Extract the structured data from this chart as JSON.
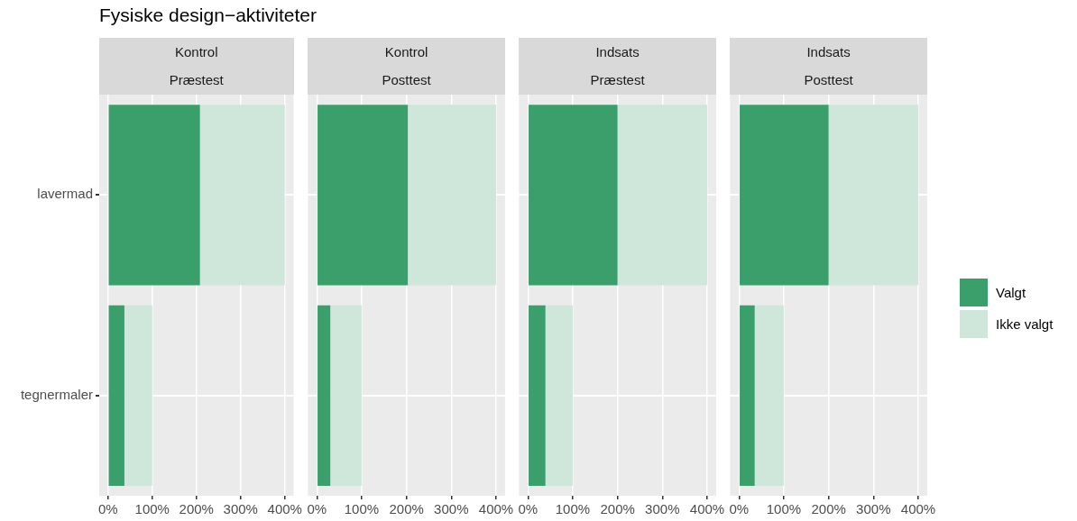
{
  "chart_data": [
    {
      "type": "bar",
      "title": "Fysiske design−aktiviteter",
      "annotations": [
        "Kontrol",
        "Præstest"
      ],
      "orientation": "horizontal",
      "stacked": true,
      "categories": [
        "lavermad",
        "tegnermaler"
      ],
      "series": [
        {
          "color": "#3b9f6c",
          "values": [
            208,
            37
          ]
        },
        {
          "color": "#cfe7da",
          "values": [
            192,
            63
          ]
        }
      ],
      "xlim": [
        -20,
        420
      ],
      "xticks": [
        {
          "value": 0,
          "label": "0%"
        },
        {
          "value": 100,
          "label": "100%"
        },
        {
          "value": 200,
          "label": "200%"
        },
        {
          "value": 300,
          "label": "300%"
        },
        {
          "value": 400,
          "label": "400%"
        }
      ],
      "grid": true,
      "legend": false
    },
    {
      "type": "bar",
      "annotations": [
        "Kontrol",
        "Posttest"
      ],
      "orientation": "horizontal",
      "stacked": true,
      "categories": [
        null,
        null
      ],
      "series": [
        {
          "color": "#3b9f6c",
          "values": [
            203,
            30
          ]
        },
        {
          "color": "#cfe7da",
          "values": [
            197,
            70
          ]
        }
      ],
      "xlim": [
        -20,
        420
      ],
      "xticks": [
        {
          "value": 0,
          "label": "0%"
        },
        {
          "value": 100,
          "label": "100%"
        },
        {
          "value": 200,
          "label": "200%"
        },
        {
          "value": 300,
          "label": "300%"
        },
        {
          "value": 400,
          "label": "400%"
        }
      ],
      "grid": true,
      "legend": false,
      "tick_labels": "x"
    },
    {
      "type": "bar",
      "annotations": [
        "Indsats",
        "Præstest"
      ],
      "orientation": "horizontal",
      "stacked": true,
      "categories": [
        null,
        null
      ],
      "series": [
        {
          "color": "#3b9f6c",
          "values": [
            200,
            39
          ]
        },
        {
          "color": "#cfe7da",
          "values": [
            200,
            61
          ]
        }
      ],
      "xlim": [
        -20,
        420
      ],
      "xticks": [
        {
          "value": 0,
          "label": "0%"
        },
        {
          "value": 100,
          "label": "100%"
        },
        {
          "value": 200,
          "label": "200%"
        },
        {
          "value": 300,
          "label": "300%"
        },
        {
          "value": 400,
          "label": "400%"
        }
      ],
      "grid": true,
      "legend": false,
      "tick_labels": "x"
    },
    {
      "type": "bar",
      "annotations": [
        "Indsats",
        "Posttest"
      ],
      "orientation": "horizontal",
      "stacked": true,
      "categories": [
        null,
        null
      ],
      "series": [
        {
          "name": "Valgt",
          "color": "#3b9f6c",
          "values": [
            200,
            35
          ]
        },
        {
          "name": "Ikke valgt",
          "color": "#cfe7da",
          "values": [
            200,
            65
          ]
        }
      ],
      "xlim": [
        -20,
        420
      ],
      "xticks": [
        {
          "value": 0,
          "label": "0%"
        },
        {
          "value": 100,
          "label": "100%"
        },
        {
          "value": 200,
          "label": "200%"
        },
        {
          "value": 300,
          "label": "300%"
        },
        {
          "value": 400,
          "label": "400%"
        }
      ],
      "grid": true,
      "legend": "right",
      "tick_labels": "x"
    }
  ]
}
